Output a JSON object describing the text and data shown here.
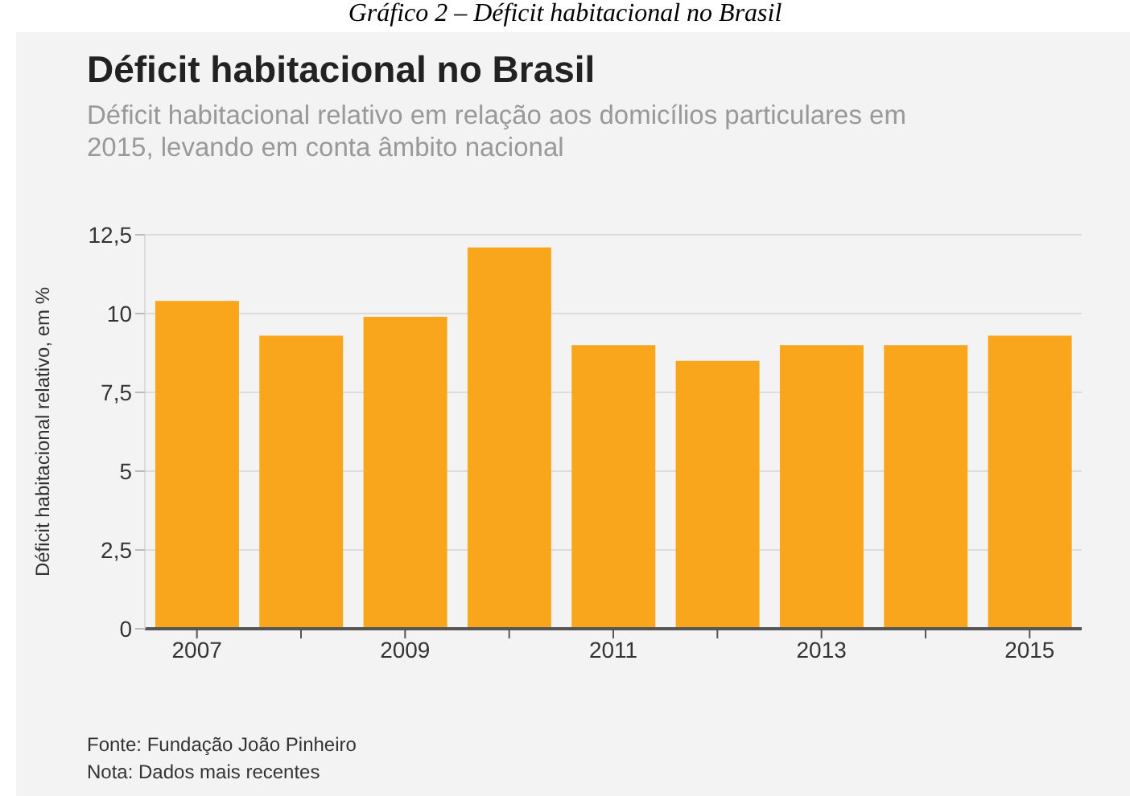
{
  "chart_data": {
    "type": "bar",
    "title": "Déficit habitacional no Brasil",
    "subtitle": "Déficit habitacional relativo em relação aos domicílios particulares em 2015, levando em conta âmbito nacional",
    "ylabel": "Déficit habitacional relativo, em %",
    "categories": [
      "2007",
      null,
      "2009",
      null,
      "2011",
      null,
      "2013",
      null,
      "2015"
    ],
    "values": [
      10.4,
      9.3,
      9.9,
      12.1,
      9.0,
      8.5,
      9.0,
      9.0,
      9.3
    ],
    "color": "#f9a61c",
    "ylim": [
      0,
      12.5
    ],
    "yticks": [
      {
        "value": 0,
        "label": "0"
      },
      {
        "value": 2.5,
        "label": "2,5"
      },
      {
        "value": 5,
        "label": "5"
      },
      {
        "value": 7.5,
        "label": "7,5"
      },
      {
        "value": 10,
        "label": "10"
      },
      {
        "value": 12.5,
        "label": "12,5"
      }
    ],
    "grid": "y",
    "annotations": [
      "Gráfico 2 – Déficit habitacional no Brasil",
      "Fonte: Fundação João Pinheiro",
      "Nota: Dados mais recentes"
    ]
  }
}
